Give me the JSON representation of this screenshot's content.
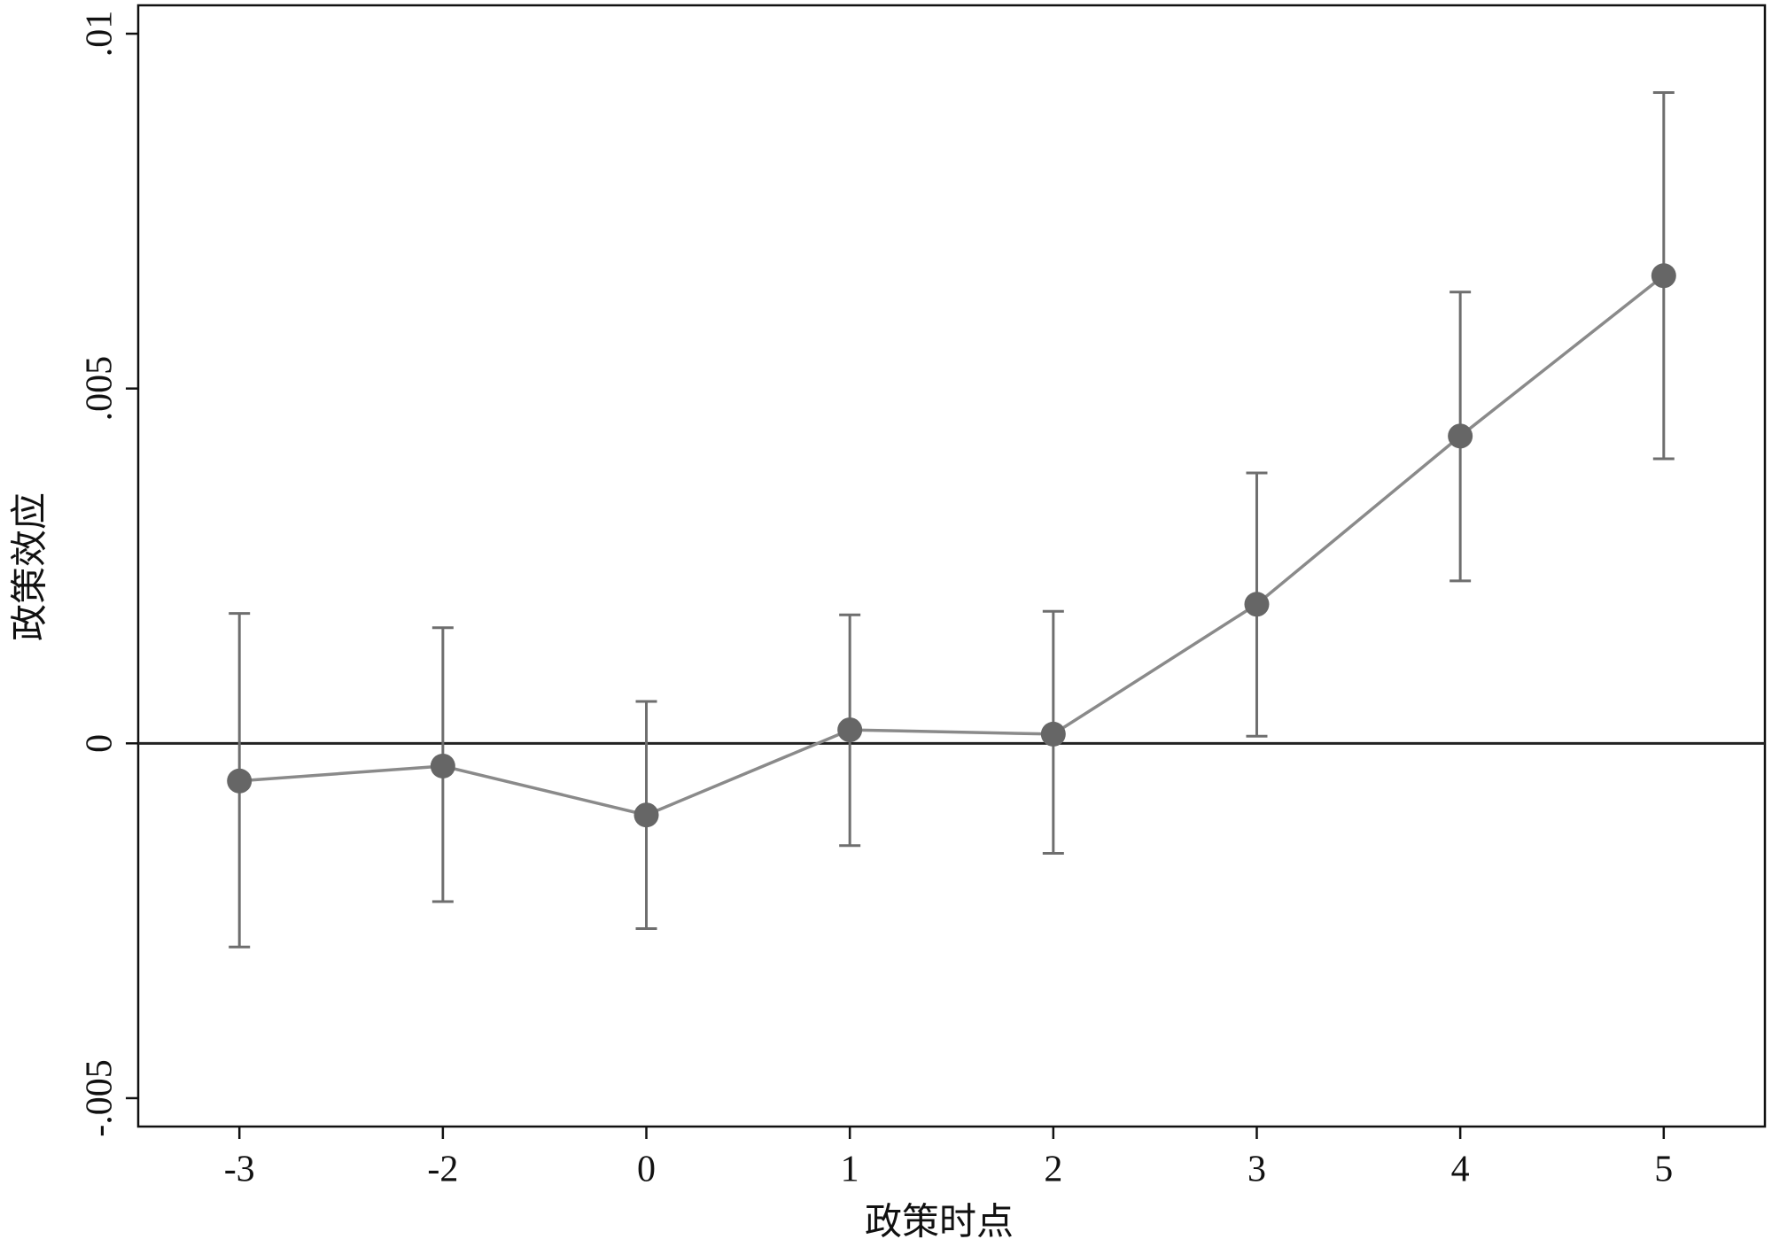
{
  "chart_data": {
    "type": "line",
    "x_label": "政策时点",
    "y_label": "政策效应",
    "categories": [
      "-3",
      "-2",
      "0",
      "1",
      "2",
      "3",
      "4",
      "5"
    ],
    "series": [
      {
        "color": "#8a8a8a",
        "marker_color": "#666666",
        "errorbar_color": "#6e6e6e",
        "values": [
          -0.00053,
          -0.00032,
          -0.00101,
          0.00019,
          0.00013,
          0.00196,
          0.00433,
          0.00659
        ],
        "ci_lower": [
          -0.00287,
          -0.00223,
          -0.00261,
          -0.00144,
          -0.00155,
          0.0001,
          0.00229,
          0.00401
        ],
        "ci_upper": [
          0.00183,
          0.00163,
          0.00059,
          0.00181,
          0.00186,
          0.00381,
          0.00636,
          0.00917
        ]
      }
    ],
    "ylim": [
      -0.0054,
      0.0104
    ],
    "yticks": [
      {
        "value": -0.005,
        "label": "-.005"
      },
      0,
      {
        "value": 0.005,
        "label": ".005"
      },
      {
        "value": 0.01,
        "label": ".01"
      }
    ],
    "reference_line": 0,
    "grid": false
  }
}
